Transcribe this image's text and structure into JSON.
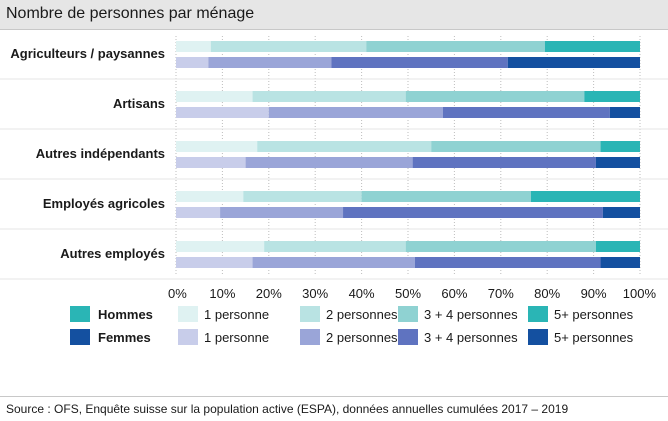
{
  "chart_data": {
    "type": "bar",
    "orientation": "horizontal-stacked",
    "title": "Nombre de personnes par ménage",
    "categories": [
      "Agriculteurs / paysannes",
      "Artisans",
      "Autres indépendants",
      "Employés agricoles",
      "Autres employés"
    ],
    "xlim": [
      0,
      100
    ],
    "xticks": [
      "0%",
      "10%",
      "20%",
      "30%",
      "40%",
      "50%",
      "60%",
      "70%",
      "80%",
      "90%",
      "100%"
    ],
    "groups": [
      {
        "name": "Hommes",
        "series": [
          {
            "name": "1 personne",
            "color": "#dff2f2",
            "values": [
              7.5,
              16.5,
              17.5,
              14.5,
              19
            ]
          },
          {
            "name": "2 personnes",
            "color": "#b9e3e3",
            "values": [
              33.5,
              33,
              37.5,
              25.5,
              30.5
            ]
          },
          {
            "name": "3 + 4 personnes",
            "color": "#8fd2d2",
            "values": [
              38.5,
              38.5,
              36.5,
              36.5,
              41
            ]
          },
          {
            "name": "5+ personnes",
            "color": "#2ab5b5",
            "values": [
              20.5,
              12,
              8.5,
              23.5,
              9.5
            ]
          }
        ]
      },
      {
        "name": "Femmes",
        "series": [
          {
            "name": "1 personne",
            "color": "#c8cdea",
            "values": [
              7,
              20,
              15,
              9.5,
              16.5
            ]
          },
          {
            "name": "2 personnes",
            "color": "#9aa5d8",
            "values": [
              26.5,
              37.5,
              36,
              26.5,
              35
            ]
          },
          {
            "name": "3 + 4 personnes",
            "color": "#5f73c0",
            "values": [
              38,
              36,
              39.5,
              56,
              40
            ]
          },
          {
            "name": "5+ personnes",
            "color": "#1450a0",
            "values": [
              28.5,
              6.5,
              9.5,
              8,
              8.5
            ]
          }
        ]
      }
    ],
    "legend": {
      "position": "bottom",
      "rows": [
        {
          "label": "Hommes",
          "swatch": "#2ab5b5",
          "items": [
            "1 personne",
            "2 personnes",
            "3 + 4 personnes",
            "5+ personnes"
          ]
        },
        {
          "label": "Femmes",
          "swatch": "#1450a0",
          "items": [
            "1 personne",
            "2 personnes",
            "3 + 4 personnes",
            "5+ personnes"
          ]
        }
      ]
    },
    "grid": true
  },
  "source": "Source : OFS, Enquête suisse sur la population active (ESPA), données annuelles cumulées 2017 – 2019"
}
